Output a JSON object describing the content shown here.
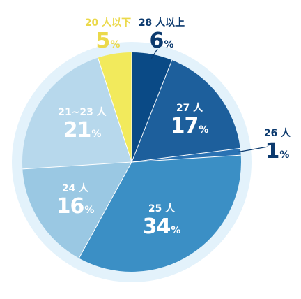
{
  "chart_data": {
    "type": "pie",
    "title": "",
    "legend": "none",
    "slices": [
      {
        "label": "28 人以上",
        "value": 6,
        "color": "#0a4a86",
        "label_color": "#0c3a6e"
      },
      {
        "label": "27 人",
        "value": 17,
        "color": "#1d5f9c",
        "label_color": "#ffffff"
      },
      {
        "label": "26 人",
        "value": 1,
        "color": "#2a72b3",
        "label_color": "#0c3a6e"
      },
      {
        "label": "25 人",
        "value": 34,
        "color": "#3b8fc5",
        "label_color": "#ffffff"
      },
      {
        "label": "24 人",
        "value": 16,
        "color": "#9ac8e3",
        "label_color": "#ffffff"
      },
      {
        "label": "21~23 人",
        "value": 21,
        "color": "#b7d8ec",
        "label_color": "#ffffff"
      },
      {
        "label": "20 人以下",
        "value": 5,
        "color": "#f2ea5c",
        "label_color": "#ebd94a"
      }
    ],
    "percent_suffix": "%",
    "ring_color": "#e3f2fb"
  }
}
